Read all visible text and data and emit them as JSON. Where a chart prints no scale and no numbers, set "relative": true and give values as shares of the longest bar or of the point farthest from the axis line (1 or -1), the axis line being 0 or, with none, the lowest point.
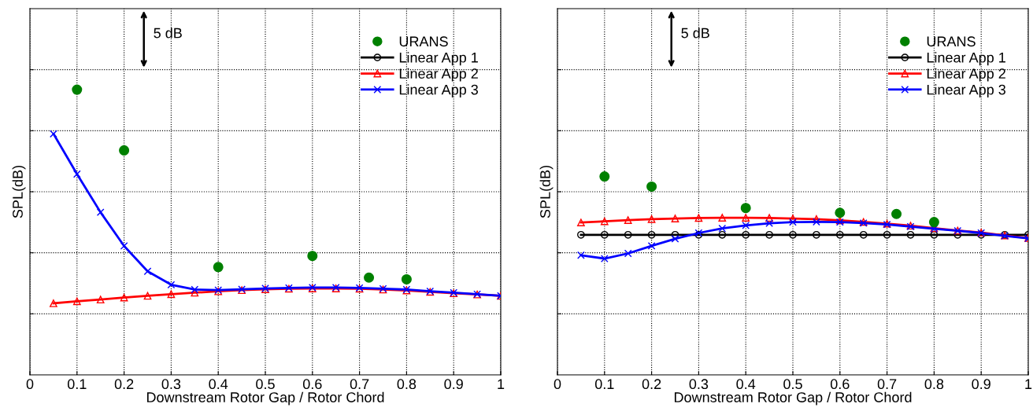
{
  "chart_data": [
    {
      "type": "line",
      "relative": true,
      "xlabel": "Downstream Rotor Gap / Rotor Chord",
      "ylabel": "SPL(dB)",
      "annotations": [
        "5 dB"
      ],
      "xlim": [
        0,
        1
      ],
      "xticks": [
        0,
        0.1,
        0.2,
        0.3,
        0.4,
        0.5,
        0.6,
        0.7,
        0.8,
        0.9,
        1
      ],
      "tick_labels": "x",
      "grid": true,
      "legend": "top right",
      "series": [
        {
          "name": "URANS",
          "type": "scatter",
          "color": "#008000",
          "marker": "circle",
          "x": [
            0.1,
            0.2,
            0.4,
            0.6,
            0.72,
            0.8
          ],
          "values": [
            1,
            0.787,
            0.378,
            0.417,
            0.341,
            0.335
          ]
        },
        {
          "name": "Linear App 1",
          "color": "#000000",
          "marker": "circle"
        },
        {
          "name": "Linear App 2",
          "color": "#ff0000",
          "marker": "triangle",
          "x": [
            0.05,
            0.1,
            0.15,
            0.2,
            0.25,
            0.3,
            0.35,
            0.4,
            0.45,
            0.5,
            0.55,
            0.6,
            0.65,
            0.7,
            0.75,
            0.8,
            0.85,
            0.9,
            0.95,
            1
          ],
          "values": [
            0.251,
            0.258,
            0.264,
            0.271,
            0.277,
            0.283,
            0.288,
            0.293,
            0.297,
            0.3,
            0.302,
            0.303,
            0.303,
            0.302,
            0.299,
            0.296,
            0.291,
            0.286,
            0.282,
            0.277
          ]
        },
        {
          "name": "Linear App 3",
          "color": "#0000ff",
          "marker": "cross",
          "x": [
            0.05,
            0.1,
            0.15,
            0.2,
            0.25,
            0.3,
            0.35,
            0.4,
            0.45,
            0.5,
            0.55,
            0.6,
            0.65,
            0.7,
            0.75,
            0.8,
            0.85,
            0.9,
            0.95,
            1
          ],
          "values": [
            0.845,
            0.704,
            0.57,
            0.452,
            0.363,
            0.316,
            0.299,
            0.297,
            0.3,
            0.303,
            0.305,
            0.306,
            0.306,
            0.305,
            0.302,
            0.299,
            0.293,
            0.288,
            0.283,
            0.277
          ]
        }
      ]
    },
    {
      "type": "line",
      "relative": true,
      "xlabel": "Downstream Rotor Gap / Rotor Chord",
      "ylabel": "SPL(dB)",
      "annotations": [
        "5 dB"
      ],
      "xlim": [
        0,
        1
      ],
      "xticks": [
        0,
        0.1,
        0.2,
        0.3,
        0.4,
        0.5,
        0.6,
        0.7,
        0.8,
        0.9,
        1
      ],
      "tick_labels": "x",
      "grid": true,
      "legend": "top right",
      "series": [
        {
          "name": "URANS",
          "type": "scatter",
          "color": "#008000",
          "marker": "circle",
          "x": [
            0.1,
            0.2,
            0.4,
            0.6,
            0.72,
            0.8
          ],
          "values": [
            1,
            0.949,
            0.841,
            0.817,
            0.811,
            0.77
          ]
        },
        {
          "name": "Linear App 1",
          "color": "#000000",
          "marker": "circle",
          "x": [
            0.05,
            0.1,
            0.15,
            0.2,
            0.25,
            0.3,
            0.35,
            0.4,
            0.45,
            0.5,
            0.55,
            0.6,
            0.65,
            0.7,
            0.75,
            0.8,
            0.85,
            0.9,
            0.95,
            1
          ],
          "values": [
            0.706,
            0.706,
            0.706,
            0.706,
            0.706,
            0.706,
            0.706,
            0.706,
            0.706,
            0.706,
            0.706,
            0.706,
            0.706,
            0.706,
            0.706,
            0.706,
            0.706,
            0.706,
            0.706,
            0.706
          ]
        },
        {
          "name": "Linear App 2",
          "color": "#ff0000",
          "marker": "triangle",
          "x": [
            0.05,
            0.1,
            0.15,
            0.2,
            0.25,
            0.3,
            0.35,
            0.4,
            0.45,
            0.5,
            0.55,
            0.6,
            0.65,
            0.7,
            0.75,
            0.8,
            0.85,
            0.9,
            0.95,
            1
          ],
          "values": [
            0.768,
            0.774,
            0.78,
            0.785,
            0.788,
            0.791,
            0.792,
            0.792,
            0.791,
            0.788,
            0.785,
            0.779,
            0.771,
            0.762,
            0.752,
            0.739,
            0.727,
            0.717,
            0.703,
            0.69
          ]
        },
        {
          "name": "Linear App 3",
          "color": "#0000ff",
          "marker": "cross",
          "x": [
            0.05,
            0.1,
            0.15,
            0.2,
            0.25,
            0.3,
            0.35,
            0.4,
            0.45,
            0.5,
            0.55,
            0.6,
            0.65,
            0.7,
            0.75,
            0.8,
            0.85,
            0.9,
            0.95,
            1
          ],
          "values": [
            0.603,
            0.586,
            0.612,
            0.65,
            0.686,
            0.715,
            0.738,
            0.753,
            0.764,
            0.77,
            0.771,
            0.77,
            0.765,
            0.758,
            0.747,
            0.736,
            0.726,
            0.715,
            0.701,
            0.688
          ]
        }
      ]
    }
  ]
}
